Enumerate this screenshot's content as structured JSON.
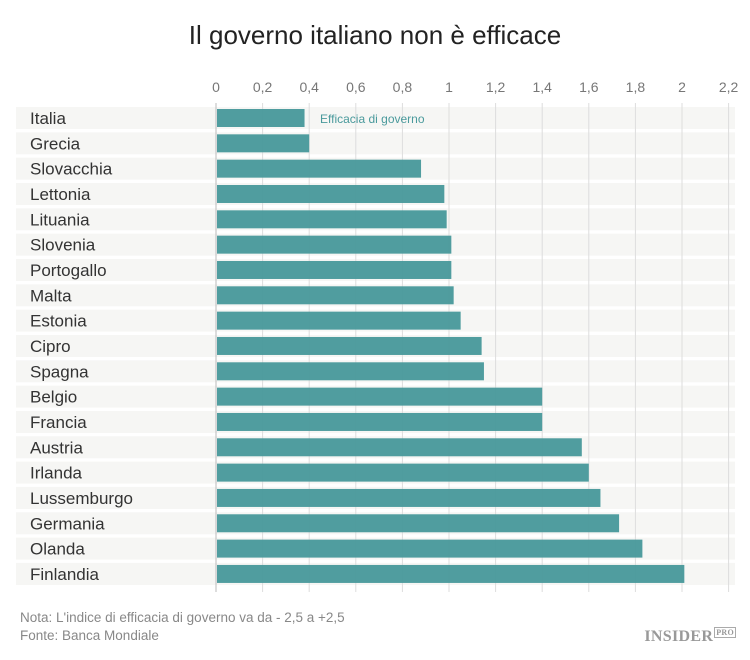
{
  "chart_data": {
    "type": "bar",
    "orientation": "horizontal",
    "title": "Il governo italiano non è efficace",
    "categories": [
      "Italia",
      "Grecia",
      "Slovacchia",
      "Lettonia",
      "Lituania",
      "Slovenia",
      "Portogallo",
      "Malta",
      "Estonia",
      "Cipro",
      "Spagna",
      "Belgio",
      "Francia",
      "Austria",
      "Irlanda",
      "Lussemburgo",
      "Germania",
      "Olanda",
      "Finlandia"
    ],
    "series": [
      {
        "name": "Efficacia di governo",
        "values": [
          0.38,
          0.4,
          0.88,
          0.98,
          0.99,
          1.01,
          1.01,
          1.02,
          1.05,
          1.14,
          1.15,
          1.4,
          1.4,
          1.57,
          1.6,
          1.65,
          1.73,
          1.83,
          2.01
        ]
      }
    ],
    "xlim": [
      0,
      2.2
    ],
    "x_ticks": [
      "0",
      "0,2",
      "0,4",
      "0,6",
      "0,8",
      "1",
      "1,2",
      "1,4",
      "1,6",
      "1,8",
      "2",
      "2,2"
    ],
    "tick_values": [
      0,
      0.2,
      0.4,
      0.6,
      0.8,
      1,
      1.2,
      1.4,
      1.6,
      1.8,
      2,
      2.2
    ],
    "axis_position": "top",
    "grid": true,
    "bar_color": "#4a9a9c",
    "series_label_color": "#4a9a9c",
    "row_band_color": "#f6f6f4"
  },
  "footer": {
    "note": "Nota: L'indice di efficacia di governo va da - 2,5 a +2,5",
    "source": "Fonte: Banca Mondiale",
    "logo": "INSIDER",
    "logo_sup": "PRO"
  }
}
